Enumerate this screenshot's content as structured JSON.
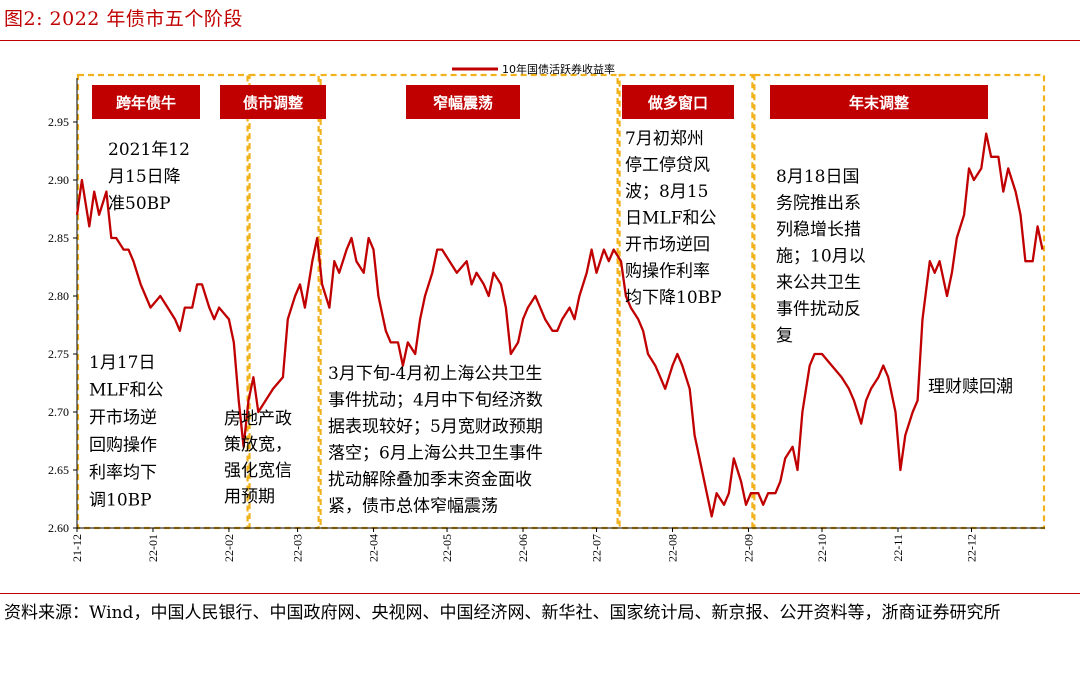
{
  "header": {
    "title": "图2:  2022 年债市五个阶段"
  },
  "source": {
    "text": "资料来源：Wind，中国人民银行、中国政府网、央视网、中国经济网、新华社、国家统计局、新京报、公开资料等，浙商证券研究所"
  },
  "colors": {
    "accent": "#c00000",
    "phase_border": "#f2b21c",
    "series": "#c00000"
  },
  "chart_data": {
    "type": "line",
    "title": "",
    "xlabel": "",
    "ylabel": "",
    "ylim": [
      2.6,
      2.95
    ],
    "yticks": [
      "2.60",
      "2.65",
      "2.70",
      "2.75",
      "2.80",
      "2.85",
      "2.90",
      "2.95"
    ],
    "xticks": [
      "21-12",
      "22-01",
      "22-02",
      "22-03",
      "22-04",
      "22-05",
      "22-06",
      "22-07",
      "22-08",
      "22-09",
      "22-10",
      "22-11",
      "22-12"
    ],
    "grid": false,
    "legend": {
      "position": "top-center"
    },
    "series": [
      {
        "name": "10年国债活跃券收益率",
        "points": [
          [
            "2021-12-01",
            2.87
          ],
          [
            "2021-12-03",
            2.9
          ],
          [
            "2021-12-06",
            2.86
          ],
          [
            "2021-12-08",
            2.89
          ],
          [
            "2021-12-10",
            2.87
          ],
          [
            "2021-12-13",
            2.89
          ],
          [
            "2021-12-15",
            2.85
          ],
          [
            "2021-12-17",
            2.85
          ],
          [
            "2021-12-20",
            2.84
          ],
          [
            "2021-12-22",
            2.84
          ],
          [
            "2021-12-24",
            2.83
          ],
          [
            "2021-12-27",
            2.81
          ],
          [
            "2021-12-29",
            2.8
          ],
          [
            "2021-12-31",
            2.79
          ],
          [
            "2022-01-04",
            2.8
          ],
          [
            "2022-01-07",
            2.79
          ],
          [
            "2022-01-10",
            2.78
          ],
          [
            "2022-01-12",
            2.77
          ],
          [
            "2022-01-14",
            2.79
          ],
          [
            "2022-01-17",
            2.79
          ],
          [
            "2022-01-19",
            2.81
          ],
          [
            "2022-01-21",
            2.81
          ],
          [
            "2022-01-24",
            2.79
          ],
          [
            "2022-01-26",
            2.78
          ],
          [
            "2022-01-28",
            2.79
          ],
          [
            "2022-02-01",
            2.78
          ],
          [
            "2022-02-03",
            2.76
          ],
          [
            "2022-02-05",
            2.71
          ],
          [
            "2022-02-07",
            2.67
          ],
          [
            "2022-02-09",
            2.71
          ],
          [
            "2022-02-11",
            2.73
          ],
          [
            "2022-02-13",
            2.7
          ],
          [
            "2022-02-16",
            2.71
          ],
          [
            "2022-02-19",
            2.72
          ],
          [
            "2022-02-23",
            2.73
          ],
          [
            "2022-02-25",
            2.78
          ],
          [
            "2022-02-28",
            2.8
          ],
          [
            "2022-03-02",
            2.81
          ],
          [
            "2022-03-04",
            2.79
          ],
          [
            "2022-03-07",
            2.83
          ],
          [
            "2022-03-09",
            2.85
          ],
          [
            "2022-03-11",
            2.81
          ],
          [
            "2022-03-14",
            2.79
          ],
          [
            "2022-03-16",
            2.83
          ],
          [
            "2022-03-18",
            2.82
          ],
          [
            "2022-03-21",
            2.84
          ],
          [
            "2022-03-23",
            2.85
          ],
          [
            "2022-03-25",
            2.83
          ],
          [
            "2022-03-28",
            2.82
          ],
          [
            "2022-03-30",
            2.85
          ],
          [
            "2022-04-01",
            2.84
          ],
          [
            "2022-04-03",
            2.8
          ],
          [
            "2022-04-06",
            2.77
          ],
          [
            "2022-04-08",
            2.76
          ],
          [
            "2022-04-11",
            2.76
          ],
          [
            "2022-04-13",
            2.74
          ],
          [
            "2022-04-15",
            2.76
          ],
          [
            "2022-04-18",
            2.75
          ],
          [
            "2022-04-20",
            2.78
          ],
          [
            "2022-04-22",
            2.8
          ],
          [
            "2022-04-25",
            2.82
          ],
          [
            "2022-04-27",
            2.84
          ],
          [
            "2022-04-29",
            2.84
          ],
          [
            "2022-05-02",
            2.83
          ],
          [
            "2022-05-05",
            2.82
          ],
          [
            "2022-05-09",
            2.83
          ],
          [
            "2022-05-11",
            2.81
          ],
          [
            "2022-05-13",
            2.82
          ],
          [
            "2022-05-16",
            2.81
          ],
          [
            "2022-05-18",
            2.8
          ],
          [
            "2022-05-20",
            2.82
          ],
          [
            "2022-05-23",
            2.81
          ],
          [
            "2022-05-25",
            2.79
          ],
          [
            "2022-05-27",
            2.75
          ],
          [
            "2022-05-30",
            2.76
          ],
          [
            "2022-06-01",
            2.78
          ],
          [
            "2022-06-03",
            2.79
          ],
          [
            "2022-06-06",
            2.8
          ],
          [
            "2022-06-08",
            2.79
          ],
          [
            "2022-06-10",
            2.78
          ],
          [
            "2022-06-13",
            2.77
          ],
          [
            "2022-06-15",
            2.77
          ],
          [
            "2022-06-17",
            2.78
          ],
          [
            "2022-06-20",
            2.79
          ],
          [
            "2022-06-22",
            2.78
          ],
          [
            "2022-06-24",
            2.8
          ],
          [
            "2022-06-27",
            2.82
          ],
          [
            "2022-06-29",
            2.84
          ],
          [
            "2022-07-01",
            2.82
          ],
          [
            "2022-07-04",
            2.84
          ],
          [
            "2022-07-06",
            2.83
          ],
          [
            "2022-07-08",
            2.84
          ],
          [
            "2022-07-11",
            2.83
          ],
          [
            "2022-07-13",
            2.8
          ],
          [
            "2022-07-15",
            2.79
          ],
          [
            "2022-07-18",
            2.78
          ],
          [
            "2022-07-20",
            2.77
          ],
          [
            "2022-07-22",
            2.75
          ],
          [
            "2022-07-25",
            2.74
          ],
          [
            "2022-07-27",
            2.73
          ],
          [
            "2022-07-29",
            2.72
          ],
          [
            "2022-08-01",
            2.74
          ],
          [
            "2022-08-03",
            2.75
          ],
          [
            "2022-08-05",
            2.74
          ],
          [
            "2022-08-08",
            2.72
          ],
          [
            "2022-08-10",
            2.68
          ],
          [
            "2022-08-12",
            2.66
          ],
          [
            "2022-08-15",
            2.63
          ],
          [
            "2022-08-17",
            2.61
          ],
          [
            "2022-08-19",
            2.63
          ],
          [
            "2022-08-22",
            2.62
          ],
          [
            "2022-08-24",
            2.63
          ],
          [
            "2022-08-26",
            2.66
          ],
          [
            "2022-08-29",
            2.64
          ],
          [
            "2022-08-31",
            2.62
          ],
          [
            "2022-09-02",
            2.63
          ],
          [
            "2022-09-05",
            2.63
          ],
          [
            "2022-09-07",
            2.62
          ],
          [
            "2022-09-09",
            2.63
          ],
          [
            "2022-09-12",
            2.63
          ],
          [
            "2022-09-14",
            2.64
          ],
          [
            "2022-09-16",
            2.66
          ],
          [
            "2022-09-19",
            2.67
          ],
          [
            "2022-09-21",
            2.65
          ],
          [
            "2022-09-23",
            2.7
          ],
          [
            "2022-09-26",
            2.74
          ],
          [
            "2022-09-28",
            2.75
          ],
          [
            "2022-10-01",
            2.75
          ],
          [
            "2022-10-05",
            2.74
          ],
          [
            "2022-10-09",
            2.73
          ],
          [
            "2022-10-12",
            2.72
          ],
          [
            "2022-10-14",
            2.71
          ],
          [
            "2022-10-17",
            2.69
          ],
          [
            "2022-10-19",
            2.71
          ],
          [
            "2022-10-21",
            2.72
          ],
          [
            "2022-10-24",
            2.73
          ],
          [
            "2022-10-26",
            2.74
          ],
          [
            "2022-10-28",
            2.73
          ],
          [
            "2022-10-31",
            2.7
          ],
          [
            "2022-11-02",
            2.65
          ],
          [
            "2022-11-04",
            2.68
          ],
          [
            "2022-11-07",
            2.7
          ],
          [
            "2022-11-09",
            2.71
          ],
          [
            "2022-11-11",
            2.78
          ],
          [
            "2022-11-14",
            2.83
          ],
          [
            "2022-11-16",
            2.82
          ],
          [
            "2022-11-18",
            2.83
          ],
          [
            "2022-11-21",
            2.8
          ],
          [
            "2022-11-23",
            2.82
          ],
          [
            "2022-11-25",
            2.85
          ],
          [
            "2022-11-28",
            2.87
          ],
          [
            "2022-11-30",
            2.91
          ],
          [
            "2022-12-02",
            2.9
          ],
          [
            "2022-12-05",
            2.91
          ],
          [
            "2022-12-07",
            2.94
          ],
          [
            "2022-12-09",
            2.92
          ],
          [
            "2022-12-12",
            2.92
          ],
          [
            "2022-12-14",
            2.89
          ],
          [
            "2022-12-16",
            2.91
          ],
          [
            "2022-12-19",
            2.89
          ],
          [
            "2022-12-21",
            2.87
          ],
          [
            "2022-12-23",
            2.83
          ],
          [
            "2022-12-26",
            2.83
          ],
          [
            "2022-12-28",
            2.86
          ],
          [
            "2022-12-30",
            2.84
          ]
        ]
      }
    ],
    "phases": [
      {
        "label": "跨年债牛",
        "start": "2021-12-01",
        "end": "2022-02-09",
        "annotations": [
          {
            "lines": [
              "2021年12",
              "月15日降",
              "准50BP"
            ]
          },
          {
            "lines": [
              "1月17日",
              "MLF和公",
              "开市场逆",
              "回购操作",
              "利率均下",
              "调10BP"
            ]
          }
        ]
      },
      {
        "label": "债市调整",
        "start": "2022-02-09",
        "end": "2022-03-10",
        "annotations": [
          {
            "lines": [
              "房地产政",
              "策放宽，",
              "强化宽信",
              "用预期"
            ]
          }
        ]
      },
      {
        "label": "窄幅震荡",
        "start": "2022-03-10",
        "end": "2022-07-10",
        "annotations": [
          {
            "lines": [
              "3月下旬-4月初上海公共卫生",
              "事件扰动；4月中下旬经济数",
              "据表现较好；5月宽财政预期",
              "落空；6月上海公共卫生事件",
              "扰动解除叠加季末资金面收",
              "紧，债市总体窄幅震荡"
            ]
          }
        ]
      },
      {
        "label": "做多窗口",
        "start": "2022-07-10",
        "end": "2022-09-03",
        "annotations": [
          {
            "lines": [
              "7月初郑州",
              "停工停贷风",
              "波；8月15",
              "日MLF和公",
              "开市场逆回",
              "购操作利率",
              "均下降10BP"
            ]
          }
        ]
      },
      {
        "label": "年末调整",
        "start": "2022-09-03",
        "end": "2022-12-31",
        "annotations": [
          {
            "lines": [
              "8月18日国",
              "务院推出系",
              "列稳增长措",
              "施；10月以",
              "来公共卫生",
              "事件扰动反",
              "复"
            ]
          },
          {
            "lines": [
              "理财赎回潮"
            ]
          }
        ]
      }
    ]
  }
}
